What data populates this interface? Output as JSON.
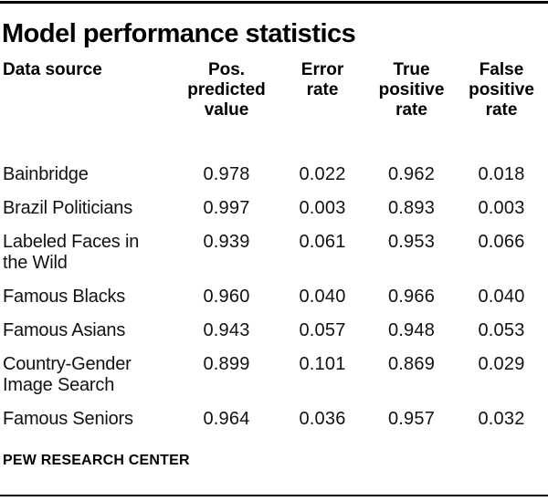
{
  "title": "Model performance statistics",
  "footer": {
    "source_label": "PEW RESEARCH CENTER"
  },
  "header": {
    "col1": "Data source",
    "col2": "Pos.\npredicted\nvalue",
    "col3": "Error\nrate",
    "col4": "True\npositive\nrate",
    "col5": "False\npositive\nrate"
  },
  "colors": {
    "text": "#111111",
    "heading": "#000000",
    "rule": "#000000",
    "background": "#ffffff"
  },
  "chart_data": {
    "type": "table",
    "title": "Model performance statistics",
    "columns": [
      "Data source",
      "Pos. predicted value",
      "Error rate",
      "True positive rate",
      "False positive rate"
    ],
    "rows": [
      {
        "label": "Bainbridge",
        "values": [
          "0.978",
          "0.022",
          "0.962",
          "0.018"
        ]
      },
      {
        "label": "Brazil Politicians",
        "values": [
          "0.997",
          "0.003",
          "0.893",
          "0.003"
        ]
      },
      {
        "label": "Labeled Faces in\nthe Wild",
        "values": [
          "0.939",
          "0.061",
          "0.953",
          "0.066"
        ]
      },
      {
        "label": "Famous Blacks",
        "values": [
          "0.960",
          "0.040",
          "0.966",
          "0.040"
        ]
      },
      {
        "label": "Famous Asians",
        "values": [
          "0.943",
          "0.057",
          "0.948",
          "0.053"
        ]
      },
      {
        "label": "Country-Gender\nImage Search",
        "values": [
          "0.899",
          "0.101",
          "0.869",
          "0.029"
        ]
      },
      {
        "label": "Famous Seniors",
        "values": [
          "0.964",
          "0.036",
          "0.957",
          "0.032"
        ]
      }
    ],
    "source": "PEW RESEARCH CENTER"
  }
}
